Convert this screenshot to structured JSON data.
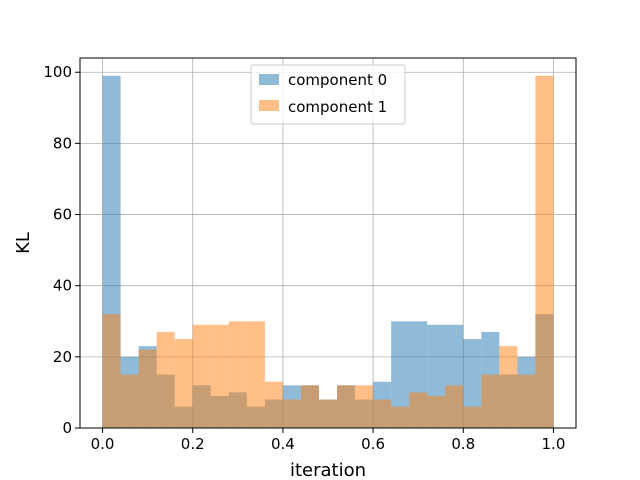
{
  "chart_data": {
    "type": "histogram",
    "xlabel": "iteration",
    "ylabel": "KL",
    "xlim": [
      -0.05,
      1.05
    ],
    "ylim": [
      0,
      104
    ],
    "xticks": [
      0.0,
      0.2,
      0.4,
      0.6,
      0.8,
      1.0
    ],
    "xtick_labels": [
      "0.0",
      "0.2",
      "0.4",
      "0.6",
      "0.8",
      "1.0"
    ],
    "yticks": [
      0,
      20,
      40,
      60,
      80,
      100
    ],
    "ytick_labels": [
      "0",
      "20",
      "40",
      "60",
      "80",
      "100"
    ],
    "grid": true,
    "legend_position": "top-center",
    "bin_edges": [
      0.0,
      0.04,
      0.08,
      0.12,
      0.16,
      0.2,
      0.24,
      0.28,
      0.32,
      0.36,
      0.4,
      0.44,
      0.48,
      0.52,
      0.56,
      0.6,
      0.64,
      0.68,
      0.72,
      0.76,
      0.8,
      0.84,
      0.88,
      0.92,
      0.96,
      1.0
    ],
    "series": [
      {
        "name": "component 0",
        "color": "#1f77b4",
        "values": [
          99,
          20,
          23,
          15,
          6,
          12,
          9,
          10,
          6,
          8,
          12,
          12,
          8,
          12,
          8,
          13,
          30,
          30,
          29,
          29,
          25,
          27,
          15,
          20,
          32
        ]
      },
      {
        "name": "component 1",
        "color": "#ff7f0e",
        "values": [
          32,
          15,
          22,
          27,
          25,
          29,
          29,
          30,
          30,
          13,
          8,
          12,
          8,
          12,
          12,
          8,
          6,
          10,
          9,
          12,
          6,
          15,
          23,
          15,
          99
        ]
      }
    ]
  }
}
